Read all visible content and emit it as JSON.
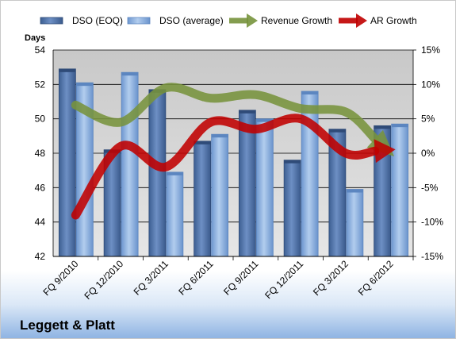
{
  "chart_data": {
    "type": "bar",
    "title": "",
    "company_label": "Leggett & Platt",
    "ylabel_left": "Days",
    "categories": [
      "FQ 9/2010",
      "FQ 12/2010",
      "FQ 3/2011",
      "FQ 6/2011",
      "FQ 9/2011",
      "FQ 12/2011",
      "FQ 3/2012",
      "FQ 6/2012"
    ],
    "ylim_left": [
      42,
      54
    ],
    "yticks_left": [
      "54",
      "52",
      "50",
      "48",
      "46",
      "44",
      "42"
    ],
    "ylim_right": [
      -15,
      15
    ],
    "yticks_right": [
      "15%",
      "10%",
      "5%",
      "0%",
      "-5%",
      "-10%",
      "-15%"
    ],
    "grid": true,
    "legend_position": "top",
    "series": [
      {
        "name": "DSO (EOQ)",
        "kind": "bar",
        "axis": "left",
        "color": "#4a6fa5",
        "values": [
          52.9,
          48.2,
          51.7,
          48.7,
          50.5,
          47.6,
          49.4,
          49.6
        ]
      },
      {
        "name": "DSO (average)",
        "kind": "bar",
        "axis": "left",
        "color": "#8db3e2",
        "values": [
          52.1,
          52.7,
          46.9,
          49.1,
          50.0,
          51.6,
          45.9,
          49.7
        ]
      },
      {
        "name": "Revenue Growth",
        "kind": "line",
        "axis": "right",
        "color": "#77933c",
        "values": [
          7,
          4.5,
          9.5,
          8,
          8.5,
          6.5,
          6,
          0
        ]
      },
      {
        "name": "AR Growth",
        "kind": "line",
        "axis": "right",
        "color": "#c00000",
        "values": [
          -9,
          1,
          -2,
          4.5,
          3.5,
          5,
          0,
          0.5
        ]
      }
    ]
  }
}
